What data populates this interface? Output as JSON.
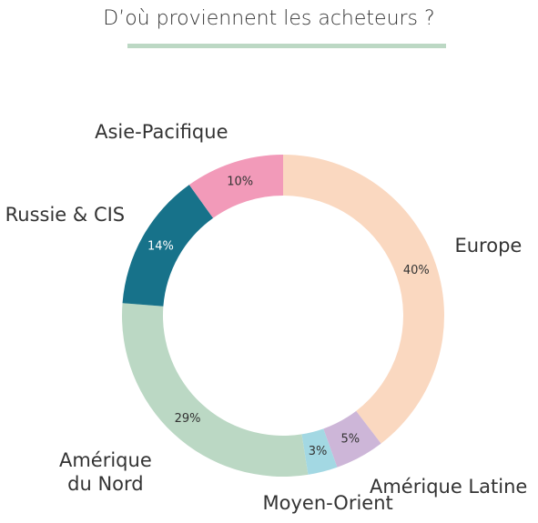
{
  "chart_data": {
    "type": "donut",
    "title": "D’où proviennent les acheteurs ?",
    "categories": [
      "Europe",
      "Amérique Latine",
      "Moyen-Orient",
      "Amérique du Nord",
      "Russie & CIS",
      "Asie-Pacifique"
    ],
    "values": [
      40,
      5,
      3,
      29,
      14,
      10
    ],
    "value_labels": [
      "40%",
      "5%",
      "3%",
      "29%",
      "14%",
      "10%"
    ],
    "colors": [
      "#fad8c0",
      "#cdb6d8",
      "#a3d8e3",
      "#bbd8c4",
      "#17728a",
      "#f29ab9"
    ]
  }
}
